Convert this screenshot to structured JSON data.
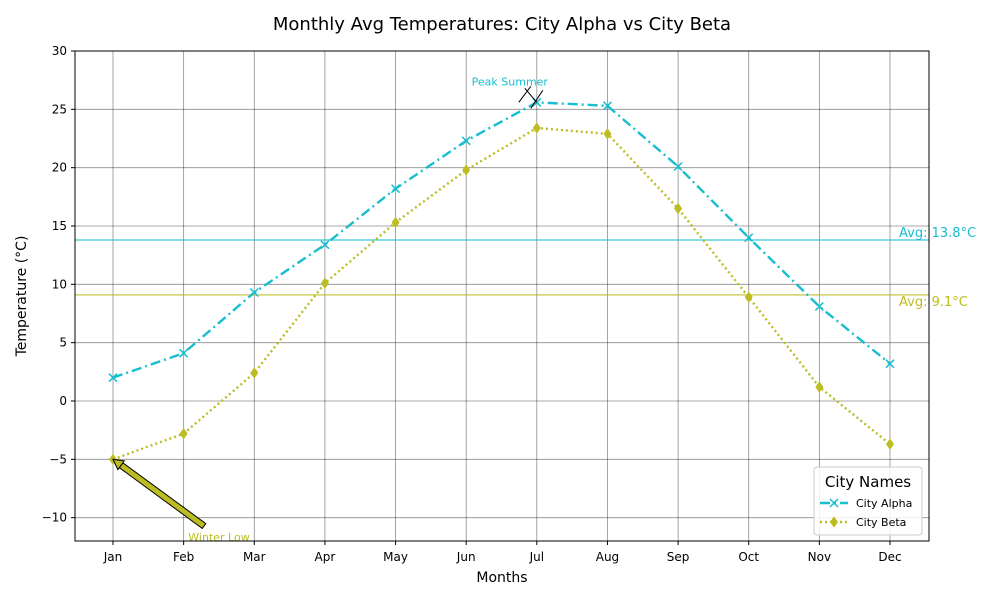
{
  "chart_data": {
    "type": "line",
    "title": "Monthly Avg Temperatures: City Alpha vs City Beta",
    "xlabel": "Months",
    "ylabel": "Temperature (°C)",
    "categories": [
      "Jan",
      "Feb",
      "Mar",
      "Apr",
      "May",
      "Jun",
      "Jul",
      "Aug",
      "Sep",
      "Oct",
      "Nov",
      "Dec"
    ],
    "ylim": [
      -12,
      30
    ],
    "yticks": [
      -10,
      -5,
      0,
      5,
      10,
      15,
      20,
      25,
      30
    ],
    "ytick_labels": [
      "−10",
      "−5",
      "0",
      "5",
      "10",
      "15",
      "20",
      "25",
      "30"
    ],
    "grid": true,
    "legend": {
      "title": "City Names",
      "placement": "lower right"
    },
    "series": [
      {
        "name": "City Alpha",
        "color": "#17becf",
        "line_style": "dashdot",
        "marker": "x",
        "values": [
          2.0,
          4.1,
          9.3,
          13.4,
          18.2,
          22.3,
          25.6,
          25.3,
          20.1,
          14.0,
          8.1,
          3.2
        ]
      },
      {
        "name": "City Beta",
        "color": "#bcbd22",
        "line_style": "dotted",
        "marker": "diamond",
        "values": [
          -5.0,
          -2.8,
          2.4,
          10.1,
          15.3,
          19.8,
          23.4,
          22.9,
          16.5,
          8.9,
          1.2,
          -3.7
        ]
      }
    ],
    "reference_lines": [
      {
        "label": "Avg: 13.8°C",
        "value": 13.8,
        "color": "#17becf"
      },
      {
        "label": "Avg: 9.1°C",
        "value": 9.1,
        "color": "#bcbd22"
      }
    ],
    "annotations": [
      {
        "text": "Peak Summer",
        "x": "Jul",
        "y": 25.6,
        "color": "#17becf"
      },
      {
        "text": "Winter Low",
        "x": "Jan",
        "y": -5.0,
        "color": "#bcbd22"
      }
    ]
  }
}
